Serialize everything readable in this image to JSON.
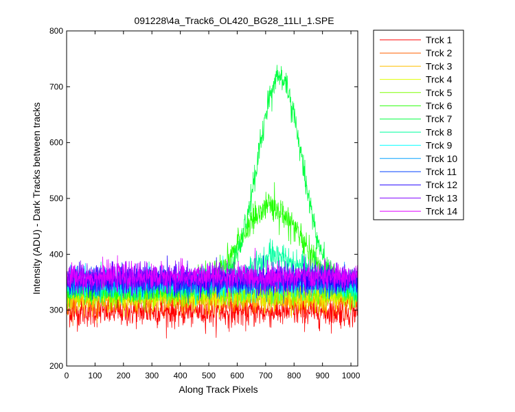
{
  "chart_data": {
    "type": "line",
    "title": "091228\\4a_Track6_OL420_BG28_11LI_1.SPE",
    "xlabel": "Along Track Pixels",
    "ylabel": "Intensity (ADU) - Dark Tracks between tracks",
    "xlim": [
      0,
      1024
    ],
    "ylim": [
      200,
      800
    ],
    "xticks": [
      0,
      100,
      200,
      300,
      400,
      500,
      600,
      700,
      800,
      900,
      1000
    ],
    "yticks": [
      200,
      300,
      400,
      500,
      600,
      700,
      800
    ],
    "grid": false,
    "legend_position": "outside-right",
    "x_range": [
      1,
      1024
    ],
    "series": [
      {
        "name": "Trck 1",
        "color": "#ff0000",
        "baseline": 298,
        "noise": 14
      },
      {
        "name": "Trck 2",
        "color": "#ff6000",
        "baseline": 320,
        "noise": 12
      },
      {
        "name": "Trck 3",
        "color": "#ffc000",
        "baseline": 322,
        "noise": 12
      },
      {
        "name": "Trck 4",
        "color": "#dfff00",
        "baseline": 328,
        "noise": 12
      },
      {
        "name": "Trck 5",
        "color": "#7fff00",
        "baseline": 332,
        "noise": 12
      },
      {
        "name": "Trck 6",
        "color": "#20ff00",
        "baseline": 338,
        "noise": 12,
        "peak": {
          "center": 720,
          "height": 485,
          "width": 150
        }
      },
      {
        "name": "Trck 7",
        "color": "#00ff40",
        "baseline": 340,
        "noise": 12,
        "peak": {
          "center": 750,
          "height": 720,
          "width": 110
        }
      },
      {
        "name": "Trck 8",
        "color": "#00ffa0",
        "baseline": 344,
        "noise": 12,
        "peak": {
          "center": 740,
          "height": 395,
          "width": 130
        }
      },
      {
        "name": "Trck 9",
        "color": "#00ffff",
        "baseline": 346,
        "noise": 12
      },
      {
        "name": "Trck 10",
        "color": "#00a0ff",
        "baseline": 350,
        "noise": 12
      },
      {
        "name": "Trck 11",
        "color": "#0040ff",
        "baseline": 352,
        "noise": 12
      },
      {
        "name": "Trck 12",
        "color": "#2000ff",
        "baseline": 355,
        "noise": 12
      },
      {
        "name": "Trck 13",
        "color": "#8000ff",
        "baseline": 358,
        "noise": 12
      },
      {
        "name": "Trck 14",
        "color": "#e000ff",
        "baseline": 360,
        "noise": 12
      }
    ]
  }
}
